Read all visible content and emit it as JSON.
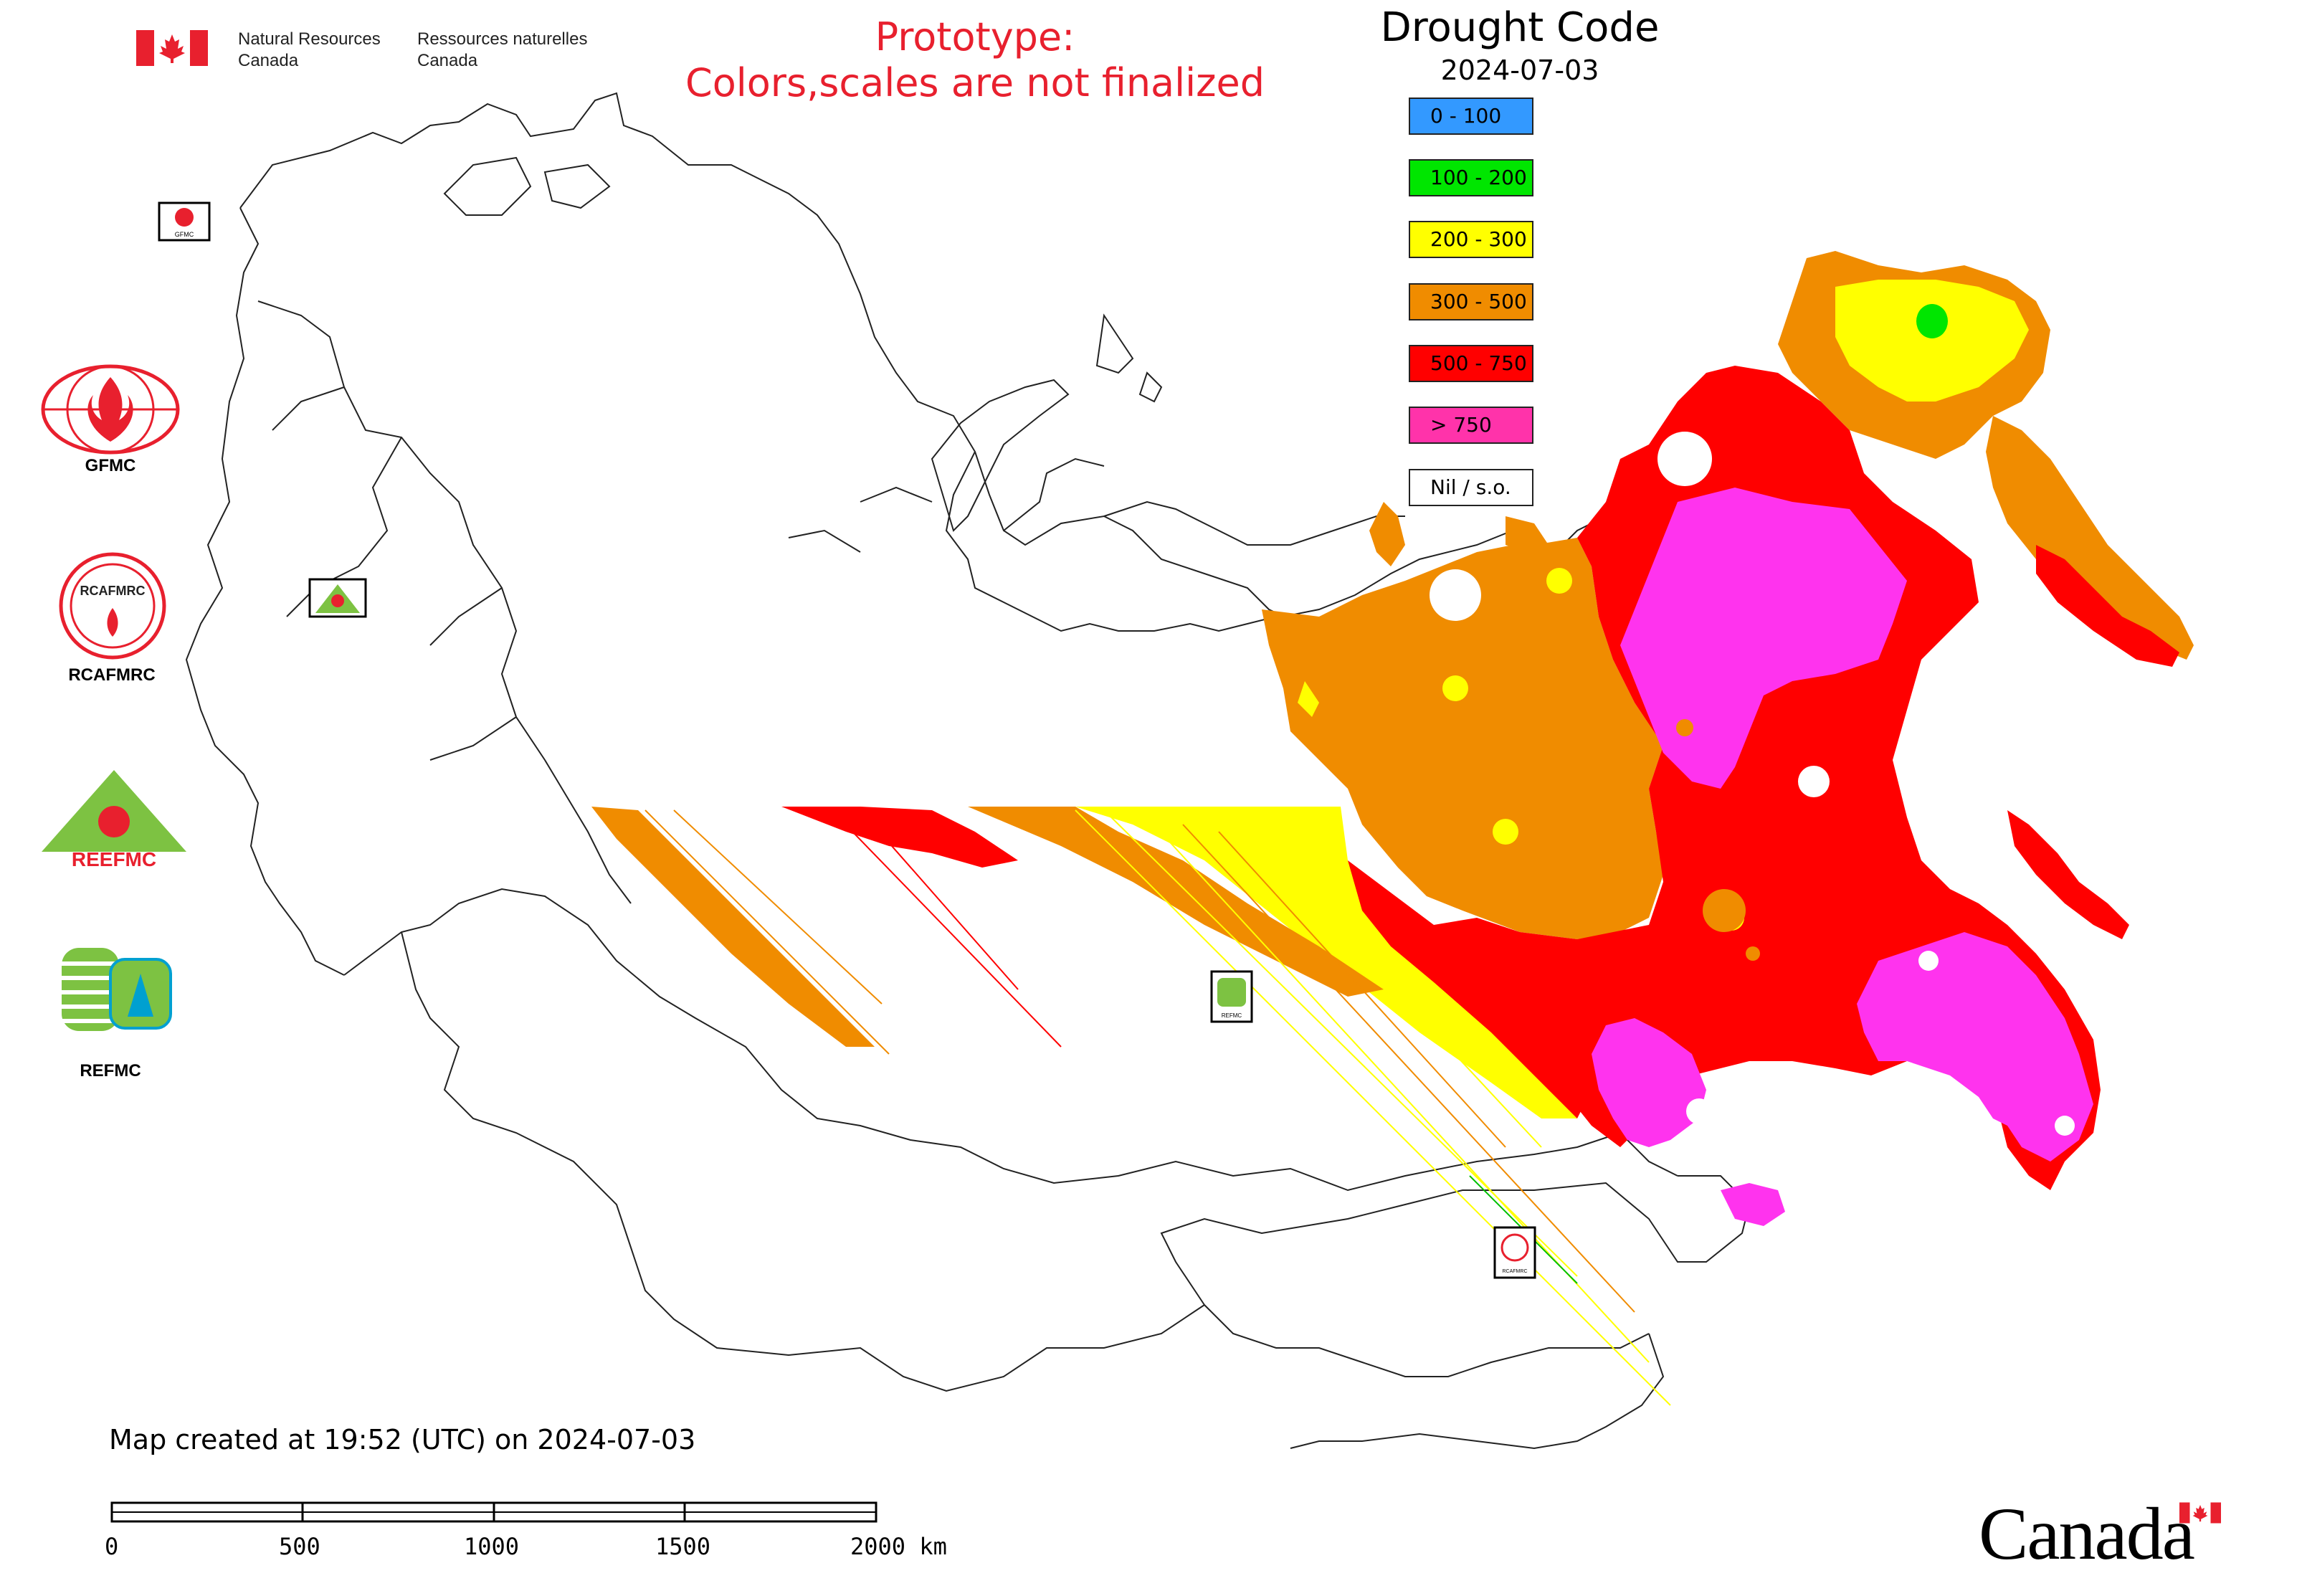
{
  "header": {
    "ministry_en_line1": "Natural Resources",
    "ministry_en_line2": "Canada",
    "ministry_fr_line1": "Ressources naturelles",
    "ministry_fr_line2": "Canada",
    "prototype_line1": "Prototype:",
    "prototype_line2": "Colors,scales are not finalized"
  },
  "legend": {
    "title": "Drought Code",
    "date": "2024-07-03",
    "items": [
      {
        "label": "0 - 100",
        "color": "#3399ff"
      },
      {
        "label": "100 - 200",
        "color": "#00e600"
      },
      {
        "label": "200 - 300",
        "color": "#ffff00"
      },
      {
        "label": "300 - 500",
        "color": "#f08c00"
      },
      {
        "label": "500 - 750",
        "color": "#ff0000"
      },
      {
        "label": "> 750",
        "color": "#ff33aa"
      },
      {
        "label": "Nil / s.o.",
        "color": "#ffffff"
      }
    ]
  },
  "orgs": [
    {
      "label": "GFMC"
    },
    {
      "label": "RCAFMRC"
    },
    {
      "label": "REEFMC"
    },
    {
      "label": "REFMC"
    }
  ],
  "logo_lettering": {
    "reefmc": "REEFMC",
    "rcafmrc": "RCAFMRC",
    "gfmc_small": "GFMC",
    "refmc_small": "REFMC"
  },
  "footer": {
    "map_created": "Map created at 19:52 (UTC) on 2024-07-03",
    "scale_labels": [
      "0",
      "500",
      "1000",
      "1500",
      "2000 km"
    ],
    "wordmark": "Canada"
  }
}
